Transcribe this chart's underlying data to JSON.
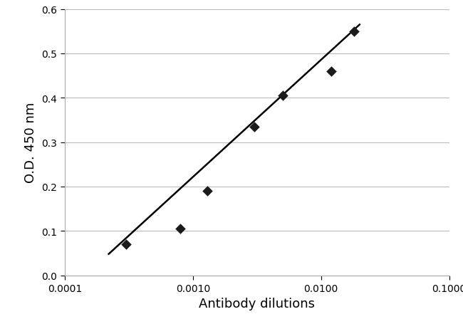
{
  "x_data": [
    0.0003,
    0.0008,
    0.0013,
    0.003,
    0.005,
    0.012,
    0.018
  ],
  "y_data": [
    0.07,
    0.105,
    0.19,
    0.335,
    0.405,
    0.46,
    0.55
  ],
  "trendline_x": [
    0.00022,
    0.02
  ],
  "trendline_y": [
    0.048,
    0.565
  ],
  "xlabel": "Antibody dilutions",
  "ylabel": "O.D. 450 nm",
  "xlim": [
    0.0001,
    0.1
  ],
  "ylim": [
    0.0,
    0.6
  ],
  "yticks": [
    0.0,
    0.1,
    0.2,
    0.3,
    0.4,
    0.5,
    0.6
  ],
  "xtick_positions": [
    0.0001,
    0.001,
    0.01,
    0.1
  ],
  "xtick_labels": [
    "0.0001",
    "0.0010",
    "0.0100",
    "0.1000"
  ],
  "marker_color": "#1a1a1a",
  "line_color": "#000000",
  "background_color": "#ffffff",
  "grid_color": "#bbbbbb",
  "marker_size": 55,
  "line_width": 1.8,
  "xlabel_fontsize": 13,
  "ylabel_fontsize": 13,
  "tick_labelsize": 10
}
